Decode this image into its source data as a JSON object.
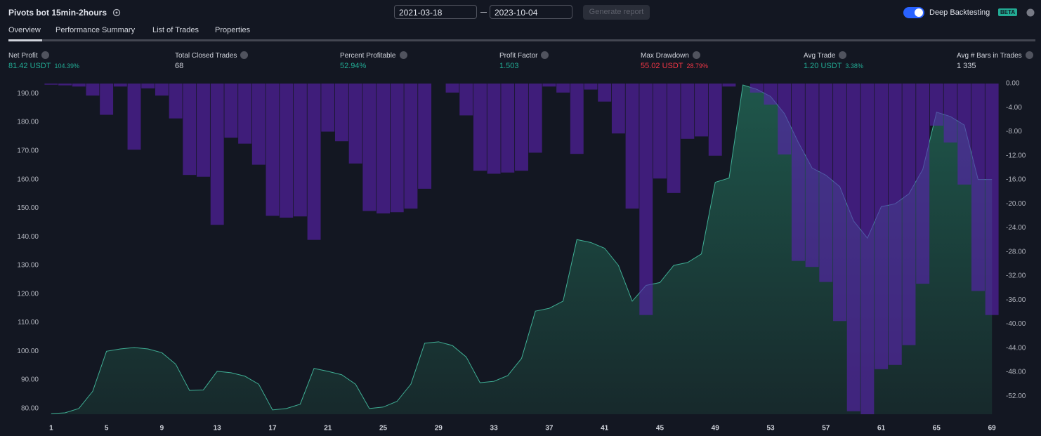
{
  "header": {
    "title": "Pivots bot 15min-2hours",
    "date_from": "2021-03-18",
    "date_to": "2023-10-04",
    "button": "Generate report",
    "toggle_label": "Deep Backtesting",
    "badge": "BETA"
  },
  "tabs": [
    "Overview",
    "Performance Summary",
    "List of Trades",
    "Properties"
  ],
  "metrics": [
    {
      "label": "Net Profit",
      "value": "81.42 USDT",
      "sub": "104.39%",
      "color": "#22ab94"
    },
    {
      "label": "Total Closed Trades",
      "value": "68",
      "color": "#d1d4dc"
    },
    {
      "label": "Percent Profitable",
      "value": "52.94%",
      "color": "#22ab94"
    },
    {
      "label": "Profit Factor",
      "value": "1.503",
      "color": "#22ab94"
    },
    {
      "label": "Max Drawdown",
      "value": "55.02 USDT",
      "sub": "28.79%",
      "color": "#f23645"
    },
    {
      "label": "Avg Trade",
      "value": "1.20 USDT",
      "sub": "3.38%",
      "color": "#22ab94"
    },
    {
      "label": "Avg # Bars in Trades",
      "value": "1 335",
      "color": "#d1d4dc"
    }
  ],
  "chart_data": {
    "type": "area",
    "x": [
      1,
      2,
      3,
      4,
      5,
      6,
      7,
      8,
      9,
      10,
      11,
      12,
      13,
      14,
      15,
      16,
      17,
      18,
      19,
      20,
      21,
      22,
      23,
      24,
      25,
      26,
      27,
      28,
      29,
      30,
      31,
      32,
      33,
      34,
      35,
      36,
      37,
      38,
      39,
      40,
      41,
      42,
      43,
      44,
      45,
      46,
      47,
      48,
      49,
      50,
      51,
      52,
      53,
      54,
      55,
      56,
      57,
      58,
      59,
      60,
      61,
      62,
      63,
      64,
      65,
      66,
      67,
      68,
      69
    ],
    "xlim": [
      0.5,
      69.5
    ],
    "xticks": [
      1,
      5,
      9,
      13,
      17,
      21,
      25,
      29,
      33,
      37,
      41,
      45,
      49,
      53,
      57,
      61,
      65,
      69
    ],
    "ylim": [
      78,
      193.5
    ],
    "yticks": [
      {
        "value": 80,
        "label": "80.00"
      },
      {
        "value": 90,
        "label": "90.00"
      },
      {
        "value": 100,
        "label": "100.00"
      },
      {
        "value": 110,
        "label": "110.00"
      },
      {
        "value": 120,
        "label": "120.00"
      },
      {
        "value": 130,
        "label": "130.00"
      },
      {
        "value": 140,
        "label": "140.00"
      },
      {
        "value": 150,
        "label": "150.00"
      },
      {
        "value": 160,
        "label": "160.00"
      },
      {
        "value": 170,
        "label": "170.00"
      },
      {
        "value": 180,
        "label": "180.00"
      },
      {
        "value": 190,
        "label": "190.00"
      }
    ],
    "y2lim": [
      -55,
      0
    ],
    "y2ticks": [
      {
        "value": 0,
        "label": "0.00"
      },
      {
        "value": -4,
        "label": "-4.00"
      },
      {
        "value": -8,
        "label": "-8.00"
      },
      {
        "value": -12,
        "label": "-12.00"
      },
      {
        "value": -16,
        "label": "-16.00"
      },
      {
        "value": -20,
        "label": "-20.00"
      },
      {
        "value": -24,
        "label": "-24.00"
      },
      {
        "value": -28,
        "label": "-28.00"
      },
      {
        "value": -32,
        "label": "-32.00"
      },
      {
        "value": -36,
        "label": "-36.00"
      },
      {
        "value": -40,
        "label": "-40.00"
      },
      {
        "value": -44,
        "label": "-44.00"
      },
      {
        "value": -48,
        "label": "-48.00"
      },
      {
        "value": -52,
        "label": "-52.00"
      }
    ],
    "series": [
      {
        "type": "area",
        "color": "#3fae94",
        "values": [
          78.2,
          78.5,
          80,
          86,
          100,
          100.8,
          101.3,
          100.8,
          99.5,
          95.5,
          86.3,
          86.5,
          93,
          92.5,
          91.3,
          88.5,
          79.5,
          80,
          81.5,
          94,
          93,
          91.8,
          88.5,
          80,
          80.5,
          82.5,
          88.5,
          102.8,
          103.3,
          102,
          98,
          89,
          89.5,
          91.5,
          97.5,
          114,
          115,
          117.5,
          139,
          138,
          136,
          130,
          117.5,
          123,
          124,
          130,
          131,
          134,
          159,
          160.5,
          193,
          191.5,
          189,
          183,
          173,
          164,
          161.5,
          157.5,
          145.5,
          139.5,
          150.5,
          151.5,
          155,
          163.5,
          183.5,
          182,
          179,
          160,
          160
        ]
      },
      {
        "type": "bar",
        "axis": "y2",
        "color": "#5a22b0",
        "values": [
          -0.2,
          -0.3,
          -0.5,
          -2,
          -5.2,
          -0.5,
          -11,
          -0.8,
          -2,
          -5.8,
          -15.2,
          -15.5,
          -23.5,
          -9,
          -10,
          -13.5,
          -22,
          -22.3,
          -22.1,
          -26,
          -8,
          -9.6,
          -13.3,
          -21.2,
          -21.6,
          -21.4,
          -20.8,
          -17.5,
          0,
          -1.5,
          -5.3,
          -14.5,
          -15,
          -14.8,
          -14.5,
          -11.5,
          -0.5,
          -1.5,
          -11.7,
          -1,
          -3,
          -8.3,
          -20.8,
          -38.5,
          -15.8,
          -18.2,
          -9.2,
          -8.8,
          -12,
          -0.5,
          0,
          -1.5,
          -3.5,
          -11.8,
          -29.5,
          -30.5,
          -33,
          -39.5,
          -54.5,
          -55,
          -47.5,
          -46.8,
          -43.5,
          -33.3,
          -7,
          -9.8,
          -16.8,
          -34.5,
          -38.5
        ]
      }
    ]
  }
}
